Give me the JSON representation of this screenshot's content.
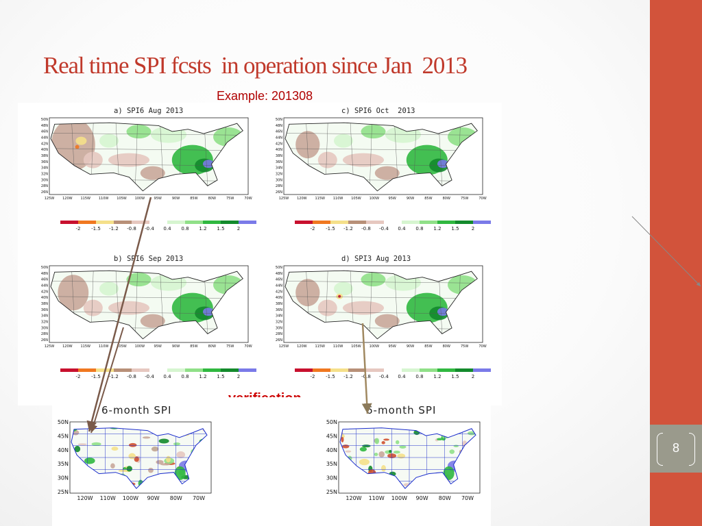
{
  "slide": {
    "title": "Real time SPI fcsts  in operation since Jan  2013",
    "example_label": "Example: 201308",
    "verification_label": "verification",
    "page_number": "8",
    "colors": {
      "accent": "#d2533b",
      "title": "#c0392b",
      "badge": "#9a9a8c"
    }
  },
  "panels": [
    {
      "title": "a) SPI6 Aug 2013"
    },
    {
      "title": "c) SPI6 Oct  2013"
    },
    {
      "title": "b) SPI6 Sep 2013"
    },
    {
      "title": "d) SPI3 Aug 2013"
    }
  ],
  "forecast_axes": {
    "lat_ticks": [
      "50N",
      "48N",
      "46N",
      "44N",
      "42N",
      "40N",
      "38N",
      "36N",
      "34N",
      "32N",
      "30N",
      "28N",
      "26N"
    ],
    "lon_ticks": [
      "125W",
      "120W",
      "115W",
      "110W",
      "105W",
      "100W",
      "95W",
      "90W",
      "85W",
      "80W",
      "75W",
      "70W"
    ]
  },
  "colorbar": {
    "labels": [
      "-2",
      "-1.5",
      "-1.2",
      "-0.8",
      "-0.4",
      "0.4",
      "0.8",
      "1.2",
      "1.5",
      "2"
    ],
    "colors": [
      "#c8102e",
      "#f07820",
      "#f5e08a",
      "#b89078",
      "#e6c8c0",
      "#ffffff",
      "#d6f5d0",
      "#90e088",
      "#30b840",
      "#138a2c",
      "#7a7ae8"
    ]
  },
  "verification_panels": [
    {
      "title": "6-month SPI"
    },
    {
      "title": "6-month SPI"
    }
  ],
  "verification_axes": {
    "lat_ticks": [
      "50N",
      "45N",
      "40N",
      "35N",
      "30N",
      "25N"
    ],
    "lon_ticks": [
      "120W",
      "110W",
      "100W",
      "90W",
      "80W",
      "70W"
    ]
  }
}
